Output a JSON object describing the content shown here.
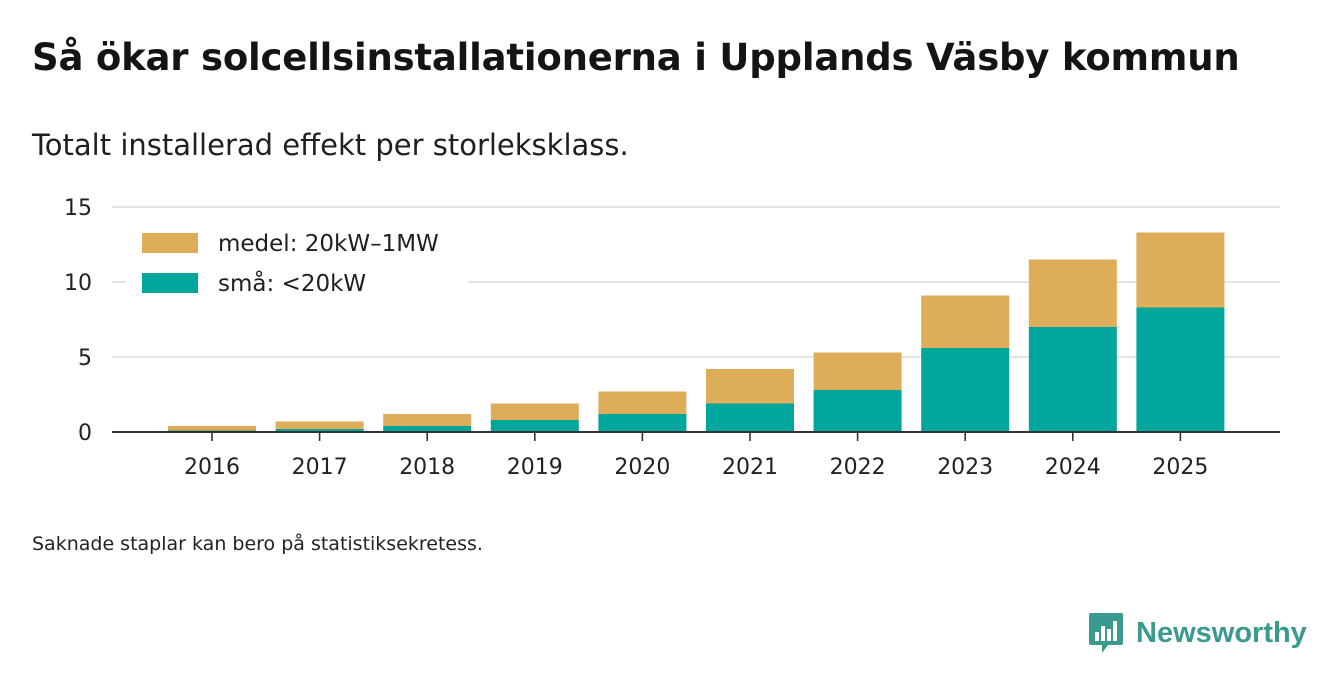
{
  "title": "Så ökar solcellsinstallationerna i Upplands Väsby kommun",
  "subtitle": "Totalt installerad effekt per storleksklass.",
  "footnote": "Saknade staplar kan bero på statistiksekretess.",
  "brand": {
    "name": "Newsworthy",
    "icon": "newsworthy-logo-icon",
    "color": "#3a9a8f"
  },
  "chart_data": {
    "type": "bar",
    "stacked": true,
    "categories": [
      "2016",
      "2017",
      "2018",
      "2019",
      "2020",
      "2021",
      "2022",
      "2023",
      "2024",
      "2025"
    ],
    "series": [
      {
        "name": "små: <20kW",
        "color": "#00a59b",
        "values": [
          0.1,
          0.2,
          0.4,
          0.8,
          1.2,
          1.9,
          2.8,
          5.6,
          7.0,
          8.3
        ]
      },
      {
        "name": "medel: 20kW–1MW",
        "color": "#ddad5a",
        "values": [
          0.3,
          0.5,
          0.8,
          1.1,
          1.5,
          2.3,
          2.5,
          3.5,
          4.5,
          5.0
        ]
      }
    ],
    "legend_order": [
      "medel: 20kW–1MW",
      "små: <20kW"
    ],
    "legend_position": "top-left",
    "yticks": [
      "0",
      "5",
      "10",
      "15"
    ],
    "ylim": [
      0,
      15
    ],
    "grid": true,
    "xlabel": "",
    "ylabel": ""
  }
}
